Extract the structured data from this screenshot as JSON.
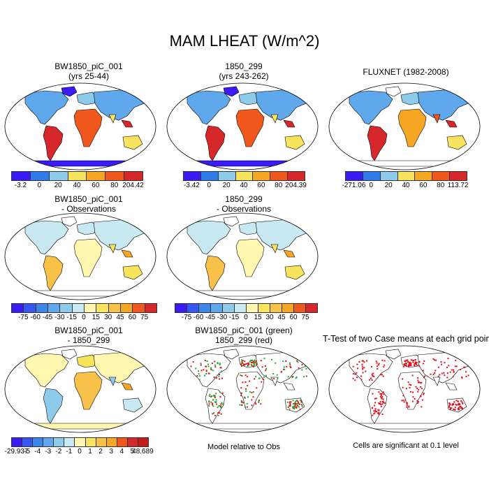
{
  "title": "MAM LHEAT (W/m^2)",
  "chart_data": [
    {
      "type": "heatmap",
      "title": "BW1850_piC_001",
      "subtitle": "(yrs 25-44)",
      "colorbar": {
        "labels": [
          "-3.2",
          "0",
          "20",
          "40",
          "60",
          "80",
          "204.42"
        ],
        "colors": [
          "#3b1bf5",
          "#2f7ce8",
          "#8ecbea",
          "#f7e35c",
          "#f5a623",
          "#f0581d",
          "#d6282a"
        ]
      }
    },
    {
      "type": "heatmap",
      "title": "1850_299",
      "subtitle": "(yrs 243-262)",
      "colorbar": {
        "labels": [
          "-3.42",
          "0",
          "20",
          "40",
          "60",
          "80",
          "204.39"
        ],
        "colors": [
          "#3b1bf5",
          "#2f7ce8",
          "#8ecbea",
          "#f7e35c",
          "#f5a623",
          "#f0581d",
          "#d6282a"
        ]
      }
    },
    {
      "type": "heatmap",
      "title": "FLUXNET (1982-2008)",
      "colorbar": {
        "labels": [
          "-271.06",
          "0",
          "20",
          "40",
          "60",
          "80",
          "113.72"
        ],
        "colors": [
          "#3b1bf5",
          "#2f7ce8",
          "#8ecbea",
          "#f7e35c",
          "#f5a623",
          "#f0581d",
          "#d6282a"
        ]
      }
    },
    {
      "type": "heatmap",
      "title": "BW1850_piC_001",
      "subtitle": "- Observations",
      "colorbar": {
        "labels": [
          "-75",
          "-60",
          "-45",
          "-30",
          "-15",
          "0",
          "15",
          "30",
          "45",
          "60",
          "75"
        ],
        "colors": [
          "#3b1bf5",
          "#3556f0",
          "#3d86e8",
          "#5fa8ec",
          "#8ecbea",
          "#c8e8f2",
          "#fff6b0",
          "#f7e35c",
          "#f8c14a",
          "#f5a623",
          "#f0581d",
          "#d6282a"
        ]
      }
    },
    {
      "type": "heatmap",
      "title": "1850_299",
      "subtitle": "- Observations",
      "colorbar": {
        "labels": [
          "-75",
          "-60",
          "-45",
          "-30",
          "-15",
          "0",
          "15",
          "30",
          "45",
          "60",
          "75"
        ],
        "colors": [
          "#3b1bf5",
          "#3556f0",
          "#3d86e8",
          "#5fa8ec",
          "#8ecbea",
          "#c8e8f2",
          "#fff6b0",
          "#f7e35c",
          "#f8c14a",
          "#f5a623",
          "#f0581d",
          "#d6282a"
        ]
      }
    },
    {
      "type": "heatmap",
      "title": "BW1850_piC_001",
      "subtitle": "- 1850_299",
      "colorbar": {
        "labels": [
          "-29.937",
          "-5",
          "-4",
          "-3",
          "-2",
          "-1",
          "0",
          "1",
          "2",
          "3",
          "4",
          "5",
          "48.689"
        ],
        "colors": [
          "#3b1bf5",
          "#3556f0",
          "#3d86e8",
          "#5fa8ec",
          "#8ecbea",
          "#c8e8f2",
          "#fff6b0",
          "#f7e35c",
          "#f8c14a",
          "#f5a623",
          "#f0581d",
          "#d6282a",
          "#c41a1a"
        ]
      }
    },
    {
      "type": "heatmap",
      "title": "BW1850_piC_001 (green)",
      "subtitle": "1850_299 (red)",
      "note": "Model relative to Obs"
    },
    {
      "type": "heatmap",
      "title": "T-Test of two Case means at each grid point",
      "note": "Cells are significant at 0.1 level"
    }
  ]
}
